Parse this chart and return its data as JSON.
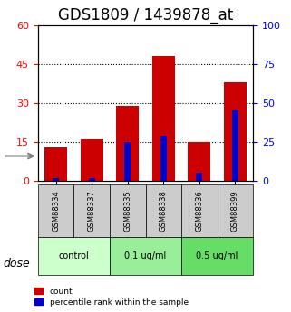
{
  "title": "GDS1809 / 1439878_at",
  "categories": [
    "GSM88334",
    "GSM88337",
    "GSM88335",
    "GSM88338",
    "GSM88336",
    "GSM88399"
  ],
  "count_values": [
    13,
    16,
    29,
    48,
    15,
    38
  ],
  "percentile_values": [
    2,
    2,
    25,
    29,
    5,
    45
  ],
  "bar_color_red": "#cc0000",
  "bar_color_blue": "#0000cc",
  "ylim_left": [
    0,
    60
  ],
  "ylim_right": [
    0,
    100
  ],
  "yticks_left": [
    0,
    15,
    30,
    45,
    60
  ],
  "yticks_right": [
    0,
    25,
    50,
    75,
    100
  ],
  "grid_values": [
    15,
    30,
    45
  ],
  "dose_groups": [
    {
      "label": "control",
      "indices": [
        0,
        1
      ],
      "color": "#ccffcc"
    },
    {
      "label": "0.1 ug/ml",
      "indices": [
        2,
        3
      ],
      "color": "#99ee99"
    },
    {
      "label": "0.5 ug/ml",
      "indices": [
        4,
        5
      ],
      "color": "#66dd66"
    }
  ],
  "dose_label": "dose",
  "legend_count": "count",
  "legend_percentile": "percentile rank within the sample",
  "title_fontsize": 12,
  "tick_fontsize": 8,
  "bar_width": 0.35
}
